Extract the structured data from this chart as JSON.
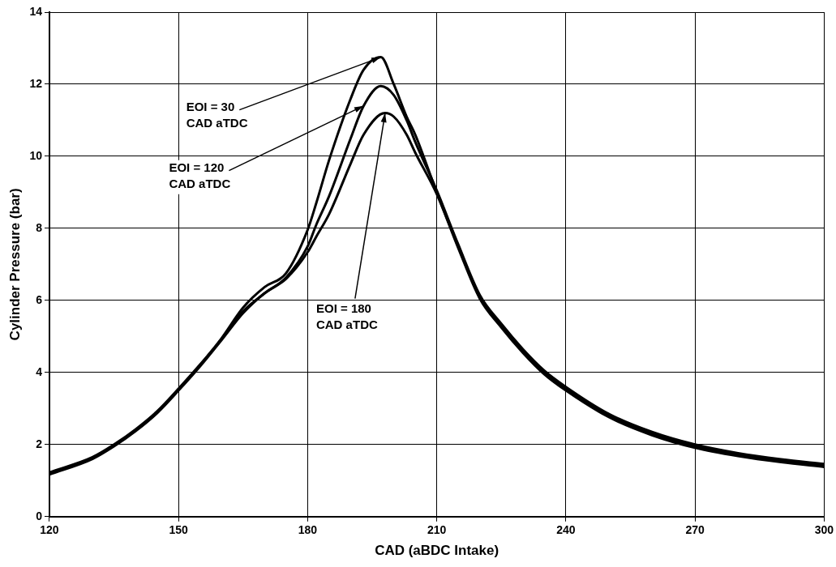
{
  "chart_data": {
    "type": "line",
    "xlabel": "CAD (aBDC Intake)",
    "ylabel": "Cylinder Pressure (bar)",
    "xlim": [
      120,
      300
    ],
    "xticks": [
      120,
      150,
      180,
      210,
      240,
      270,
      300
    ],
    "ylim": [
      0,
      14
    ],
    "yticks": [
      0,
      2,
      4,
      6,
      8,
      10,
      12,
      14
    ],
    "grid": true,
    "legend": false,
    "marker": "none",
    "line_style": "solid",
    "series": [
      {
        "color": "#000000",
        "x": [
          120,
          130,
          135,
          140,
          145,
          150,
          155,
          160,
          165,
          170,
          175,
          180,
          182,
          185,
          190,
          193,
          197,
          200,
          203,
          205,
          210,
          215,
          220,
          225,
          230,
          235,
          240,
          250,
          260,
          270,
          280,
          290,
          300
        ],
        "values": [
          1.2,
          1.63,
          1.98,
          2.4,
          2.9,
          3.53,
          4.2,
          4.95,
          5.8,
          6.37,
          6.76,
          7.96,
          8.7,
          9.9,
          11.6,
          12.4,
          12.75,
          12.0,
          11.1,
          10.6,
          9.0,
          7.5,
          6.1,
          5.3,
          4.6,
          4.0,
          3.55,
          2.8,
          2.3,
          1.95,
          1.72,
          1.55,
          1.42
        ]
      },
      {
        "color": "#000000",
        "x": [
          120,
          130,
          135,
          140,
          145,
          150,
          155,
          160,
          165,
          170,
          175,
          180,
          182,
          185,
          190,
          193,
          197,
          200,
          203,
          205,
          210,
          215,
          220,
          225,
          230,
          235,
          240,
          250,
          260,
          270,
          280,
          290,
          300
        ],
        "values": [
          1.23,
          1.65,
          2.0,
          2.42,
          2.92,
          3.55,
          4.22,
          4.93,
          5.7,
          6.2,
          6.64,
          7.5,
          8.1,
          8.9,
          10.5,
          11.4,
          11.95,
          11.7,
          11.0,
          10.4,
          9.05,
          7.55,
          6.15,
          5.35,
          4.65,
          4.05,
          3.6,
          2.85,
          2.35,
          2.0,
          1.76,
          1.59,
          1.46
        ]
      },
      {
        "color": "#000000",
        "x": [
          120,
          130,
          135,
          140,
          145,
          150,
          155,
          160,
          165,
          170,
          175,
          180,
          182,
          185,
          190,
          193,
          198,
          200,
          203,
          205,
          210,
          215,
          220,
          225,
          230,
          235,
          240,
          250,
          260,
          270,
          280,
          290,
          300
        ],
        "values": [
          1.17,
          1.6,
          1.95,
          2.37,
          2.87,
          3.5,
          4.17,
          4.9,
          5.65,
          6.2,
          6.6,
          7.34,
          7.77,
          8.4,
          9.8,
          10.6,
          11.2,
          11.1,
          10.6,
          10.1,
          8.95,
          7.45,
          6.05,
          5.25,
          4.55,
          3.95,
          3.5,
          2.76,
          2.26,
          1.91,
          1.68,
          1.51,
          1.38
        ]
      }
    ],
    "annotations": [
      {
        "text": "EOI = 30\nCAD aTDC",
        "x": 197,
        "y": 12.75
      },
      {
        "text": "EOI = 120\nCAD aTDC",
        "x": 193,
        "y": 11.4
      },
      {
        "text": "EOI = 180\nCAD aTDC",
        "x": 198,
        "y": 11.2
      }
    ]
  }
}
